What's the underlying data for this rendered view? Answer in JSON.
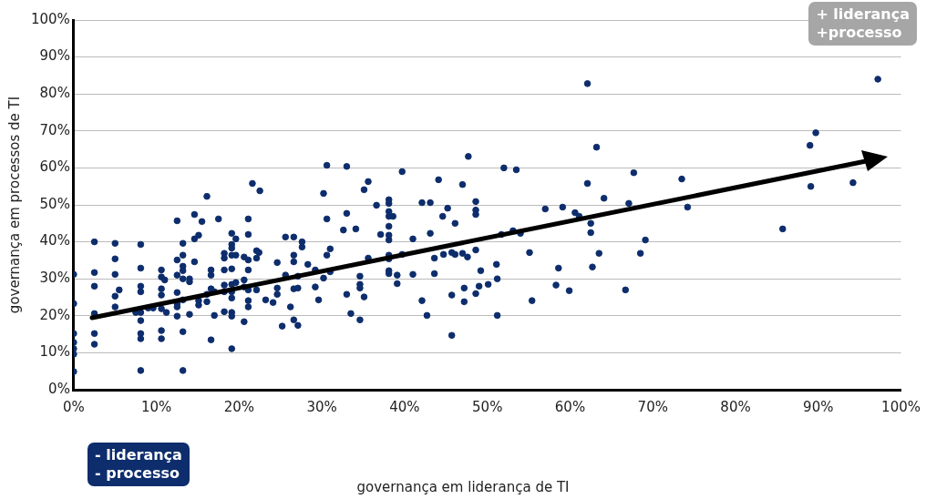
{
  "chart_data": {
    "type": "scatter",
    "xlabel": "governança em liderança de TI",
    "ylabel": "governança em processos de TI",
    "annotations": [
      "+ liderança\n+processo",
      "- liderança\n- processo"
    ],
    "xlim": [
      0,
      100
    ],
    "ylim": [
      0,
      100
    ],
    "xticks": [
      {
        "value": 0,
        "label": "0%"
      },
      {
        "value": 10,
        "label": "10%"
      },
      {
        "value": 20,
        "label": "20%"
      },
      {
        "value": 30,
        "label": "30%"
      },
      {
        "value": 40,
        "label": "40%"
      },
      {
        "value": 50,
        "label": "50%"
      },
      {
        "value": 60,
        "label": "60%"
      },
      {
        "value": 70,
        "label": "70%"
      },
      {
        "value": 80,
        "label": "80%"
      },
      {
        "value": 90,
        "label": "90%"
      },
      {
        "value": 100,
        "label": "100%"
      }
    ],
    "yticks": [
      {
        "value": 0,
        "label": "0%"
      },
      {
        "value": 10,
        "label": "10%"
      },
      {
        "value": 20,
        "label": "20%"
      },
      {
        "value": 30,
        "label": "30%"
      },
      {
        "value": 40,
        "label": "40%"
      },
      {
        "value": 50,
        "label": "50%"
      },
      {
        "value": 60,
        "label": "60%"
      },
      {
        "value": 70,
        "label": "70%"
      },
      {
        "value": 80,
        "label": "80%"
      },
      {
        "value": 90,
        "label": "90%"
      },
      {
        "value": 100,
        "label": "100%"
      }
    ],
    "grid": "y",
    "legend": false,
    "marker": "circle",
    "series": [
      {
        "color": "#0d2d6c",
        "x": [
          0,
          0,
          0,
          0,
          0,
          0,
          0,
          2.5,
          2.5,
          2.5,
          2.5,
          2.5,
          2.5,
          5,
          5,
          5,
          5,
          5,
          5.5,
          8.1,
          8.1,
          8.1,
          8.1,
          8.1,
          8.1,
          8.1,
          8.1,
          8.1,
          7.5,
          9.0,
          9.6,
          10.6,
          10.6,
          10.6,
          10.6,
          10.6,
          10.6,
          10.6,
          11,
          11.2,
          12.5,
          12.5,
          12.5,
          12.5,
          12.5,
          12.5,
          12.5,
          13.2,
          13.2,
          13.2,
          13.2,
          13.2,
          13.2,
          13.2,
          13.2,
          14.6,
          14.6,
          15.1,
          15.5,
          16.1,
          14.6,
          14,
          14,
          14,
          15.1,
          15.1,
          16.6,
          16.6,
          16.6,
          16.6,
          17.5,
          17,
          17,
          16.1,
          16.1,
          18.2,
          18.2,
          18.2,
          18.2,
          18.2,
          18.2,
          19.1,
          19.1,
          19.1,
          19.1,
          19.1,
          19.1,
          19.1,
          19.1,
          19.1,
          19.1,
          19.1,
          19.6,
          19.6,
          19.6,
          20.6,
          20.6,
          20.6,
          20.6,
          21.1,
          21.1,
          21.1,
          21.1,
          21.1,
          21.1,
          21.1,
          21.6,
          22.5,
          22.1,
          22.1,
          22.1,
          22.4,
          23.2,
          24.1,
          24.6,
          24.6,
          24.6,
          25.6,
          25.6,
          25.2,
          26.2,
          26.6,
          26.6,
          26.6,
          26.6,
          26.6,
          27.1,
          27.1,
          27.1,
          27.6,
          27.6,
          28.3,
          29.2,
          29.2,
          29.6,
          30.2,
          30.2,
          30.6,
          30.6,
          30.6,
          31.0,
          31.0,
          32.6,
          33.0,
          33.0,
          33.0,
          33.5,
          34.1,
          34.6,
          34.6,
          34.6,
          34.6,
          35.1,
          35.1,
          35.6,
          35.6,
          36.6,
          37.1,
          38.1,
          38.1,
          38.1,
          38.1,
          38.1,
          38.1,
          38.1,
          38.1,
          38.1,
          38.1,
          38.1,
          38.6,
          39.1,
          39.1,
          39.7,
          39.7,
          41.0,
          41.0,
          42.1,
          42.1,
          42.7,
          43.1,
          43.1,
          43.6,
          43.6,
          44.1,
          44.6,
          44.7,
          45.2,
          45.7,
          45.7,
          45.7,
          46.1,
          46.1,
          47.0,
          47.0,
          47.2,
          47.2,
          47.6,
          47.7,
          48.6,
          48.6,
          48.6,
          48.6,
          48.6,
          49.0,
          49.2,
          50.1,
          51.1,
          51.2,
          51.2,
          51.7,
          52.0,
          53.1,
          53.5,
          54.0,
          55.1,
          55.4,
          57.0,
          58.3,
          58.6,
          59.1,
          59.9,
          60.6,
          61.1,
          62.1,
          62.1,
          62.5,
          62.5,
          62.7,
          63.2,
          63.5,
          64.1,
          66.7,
          67.1,
          67.7,
          68.5,
          69.1,
          73.5,
          74.2,
          85.7,
          89.0,
          89.7,
          89.1,
          94.2,
          97.2
        ],
        "values": [
          31.2,
          23.3,
          15.2,
          12.8,
          11.1,
          9.6,
          4.9,
          40.0,
          31.7,
          28.0,
          20.6,
          15.2,
          12.3,
          39.6,
          35.4,
          31.2,
          25.3,
          22.4,
          27.0,
          39.3,
          32.9,
          28.0,
          26.5,
          20.9,
          18.7,
          13.8,
          15.2,
          5.2,
          20.9,
          22.1,
          22.1,
          32.4,
          30.5,
          27.3,
          25.6,
          21.9,
          16.0,
          13.8,
          29.7,
          20.9,
          45.7,
          35.1,
          31.0,
          26.3,
          23.3,
          22.4,
          19.9,
          39.6,
          36.4,
          33.4,
          32.2,
          30.0,
          24.3,
          15.7,
          5.2,
          47.4,
          40.8,
          41.8,
          45.5,
          52.3,
          34.6,
          30.0,
          29.2,
          20.4,
          24.1,
          22.9,
          32.4,
          31.0,
          27.3,
          13.5,
          46.2,
          20.1,
          26.5,
          25.8,
          23.8,
          36.9,
          35.6,
          32.4,
          26.5,
          21.1,
          28.3,
          42.3,
          39.3,
          38.3,
          36.4,
          32.7,
          28.5,
          26.5,
          24.8,
          20.9,
          19.9,
          11.1,
          40.8,
          36.4,
          29.0,
          35.9,
          29.7,
          27.8,
          18.4,
          46.2,
          42.0,
          35.1,
          32.4,
          27.0,
          24.1,
          22.4,
          55.8,
          53.8,
          37.6,
          35.6,
          27.0,
          37.1,
          24.3,
          23.6,
          34.4,
          27.5,
          25.8,
          41.3,
          31.0,
          17.2,
          22.4,
          41.3,
          36.4,
          34.6,
          27.3,
          18.9,
          30.7,
          27.5,
          17.4,
          40.0,
          38.6,
          33.9,
          32.4,
          27.8,
          24.3,
          53.1,
          30.2,
          60.7,
          46.2,
          36.4,
          38.1,
          31.9,
          43.2,
          60.4,
          47.7,
          25.8,
          20.6,
          43.5,
          30.7,
          28.5,
          27.5,
          18.9,
          25.1,
          54.1,
          56.3,
          35.6,
          49.9,
          42.0,
          51.4,
          50.4,
          48.2,
          46.9,
          44.2,
          41.8,
          40.5,
          36.4,
          35.4,
          32.2,
          31.4,
          46.9,
          31.0,
          28.7,
          59.0,
          36.6,
          40.8,
          31.2,
          50.6,
          24.1,
          20.1,
          50.6,
          42.3,
          35.6,
          31.4,
          56.8,
          46.9,
          36.6,
          49.1,
          37.1,
          25.6,
          14.7,
          45.0,
          36.6,
          55.5,
          36.9,
          27.5,
          23.8,
          35.9,
          63.1,
          50.9,
          48.6,
          47.4,
          37.8,
          26.0,
          28.0,
          32.2,
          28.5,
          33.9,
          30.0,
          20.1,
          42.0,
          60.0,
          43.0,
          59.5,
          42.3,
          37.1,
          24.1,
          48.9,
          28.3,
          32.9,
          49.4,
          26.8,
          47.9,
          46.9,
          82.8,
          55.8,
          45.0,
          42.5,
          33.2,
          65.6,
          36.9,
          51.8,
          27.0,
          50.4,
          58.7,
          36.9,
          40.5,
          57.0,
          49.4,
          43.5,
          66.1,
          69.5,
          55.0,
          56.0,
          84.0
        ]
      }
    ]
  }
}
